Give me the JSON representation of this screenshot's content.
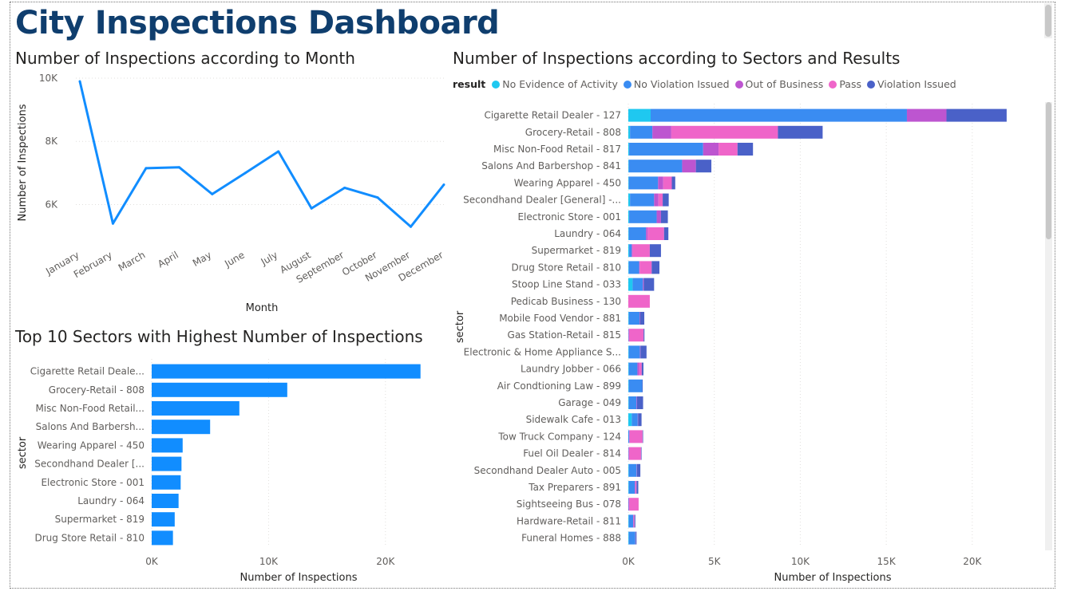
{
  "dashboard": {
    "title": "City Inspections Dashboard"
  },
  "colors": {
    "line": "#118DFF",
    "bar": "#118DFF",
    "grid": "#e1dfdd",
    "axis_text": "#605e5c",
    "title": "#0f3e6e"
  },
  "line_panel": {
    "title": "Number of Inspections according to Month"
  },
  "top10_panel": {
    "title": "Top 10 Sectors with Highest Number of Inspections"
  },
  "stacked_panel": {
    "title": "Number of Inspections according to Sectors and Results",
    "legend_title": "result"
  },
  "chart_data": [
    {
      "type": "line",
      "title": "Number of Inspections according to Month",
      "xlabel": "Month",
      "ylabel": "Number of Inspections",
      "x": [
        "January",
        "February",
        "March",
        "April",
        "May",
        "June",
        "July",
        "August",
        "September",
        "October",
        "November",
        "December"
      ],
      "series": [
        {
          "values": [
            9900,
            5400,
            7150,
            7180,
            6330,
            7000,
            7680,
            5880,
            6530,
            6220,
            5300,
            6630
          ]
        }
      ],
      "ylim": [
        4800,
        10000
      ],
      "yticks": [
        6000,
        8000,
        10000
      ],
      "ytick_labels": [
        "6K",
        "8K",
        "10K"
      ],
      "grid": true
    },
    {
      "type": "bar",
      "orientation": "horizontal",
      "title": "Top 10 Sectors with Highest Number of Inspections",
      "xlabel": "Number of Inspections",
      "ylabel": "sector",
      "categories": [
        "Cigarette Retail Deale...",
        "Grocery-Retail - 808",
        "Misc Non-Food Retail...",
        "Salons And Barbersh...",
        "Wearing Apparel - 450",
        "Secondhand Dealer [...",
        "Electronic Store - 001",
        "Laundry - 064",
        "Supermarket - 819",
        "Drug Store Retail - 810"
      ],
      "values": [
        23000,
        11600,
        7500,
        5000,
        2650,
        2550,
        2480,
        2300,
        1970,
        1820
      ],
      "xlim": [
        0,
        25000
      ],
      "xticks": [
        0,
        10000,
        20000
      ],
      "xtick_labels": [
        "0K",
        "10K",
        "20K"
      ],
      "grid": true
    },
    {
      "type": "bar",
      "orientation": "horizontal",
      "stacked": true,
      "title": "Number of Inspections according to Sectors and Results",
      "xlabel": "Number of Inspections",
      "ylabel": "sector",
      "legend_title": "result",
      "legend_position": "top-left",
      "categories": [
        "Cigarette Retail Dealer - 127",
        "Grocery-Retail - 808",
        "Misc Non-Food Retail - 817",
        "Salons And Barbershop - 841",
        "Wearing Apparel - 450",
        "Secondhand Dealer [General] -...",
        "Electronic Store - 001",
        "Laundry - 064",
        "Supermarket - 819",
        "Drug Store Retail - 810",
        "Stoop Line Stand - 033",
        "Pedicab Business - 130",
        "Mobile Food Vendor - 881",
        "Gas Station-Retail - 815",
        "Electronic & Home Appliance S...",
        "Laundry Jobber - 066",
        "Air Condtioning Law - 899",
        "Garage - 049",
        "Sidewalk Cafe - 013",
        "Tow Truck Company - 124",
        "Fuel Oil Dealer - 814",
        "Secondhand Dealer Auto - 005",
        "Tax Preparers - 891",
        "Sightseeing Bus - 078",
        "Hardware-Retail - 811",
        "Funeral Homes - 888"
      ],
      "series": [
        {
          "name": "No Evidence of Activity",
          "color": "#1fc8f0",
          "values": [
            1300,
            100,
            50,
            30,
            30,
            100,
            50,
            30,
            50,
            30,
            250,
            0,
            30,
            0,
            30,
            30,
            30,
            30,
            200,
            0,
            0,
            30,
            30,
            0,
            30,
            30
          ]
        },
        {
          "name": "No Violation Issued",
          "color": "#3a8cf2",
          "values": [
            14900,
            1300,
            4300,
            3100,
            1700,
            1400,
            1600,
            1000,
            150,
            600,
            600,
            0,
            620,
            20,
            650,
            500,
            780,
            450,
            350,
            50,
            20,
            450,
            350,
            20,
            250,
            380
          ]
        },
        {
          "name": "Out of Business",
          "color": "#bd55d0",
          "values": [
            2300,
            1100,
            900,
            800,
            300,
            250,
            250,
            100,
            50,
            30,
            50,
            0,
            30,
            20,
            30,
            100,
            0,
            30,
            20,
            30,
            20,
            20,
            50,
            30,
            30,
            20
          ]
        },
        {
          "name": "Pass",
          "color": "#ef65c9",
          "values": [
            0,
            6200,
            1100,
            0,
            500,
            250,
            0,
            950,
            1000,
            700,
            0,
            1250,
            0,
            850,
            0,
            150,
            0,
            0,
            0,
            750,
            700,
            0,
            50,
            550,
            50,
            0
          ]
        },
        {
          "name": "Violation Issued",
          "color": "#4a61c8",
          "values": [
            3500,
            2600,
            900,
            900,
            200,
            350,
            400,
            250,
            650,
            450,
            600,
            0,
            250,
            50,
            350,
            100,
            30,
            350,
            200,
            30,
            30,
            200,
            100,
            0,
            50,
            50
          ]
        }
      ],
      "xlim": [
        0,
        24000
      ],
      "xticks": [
        0,
        5000,
        10000,
        15000,
        20000
      ],
      "xtick_labels": [
        "0K",
        "5K",
        "10K",
        "15K",
        "20K"
      ],
      "grid": true
    }
  ]
}
